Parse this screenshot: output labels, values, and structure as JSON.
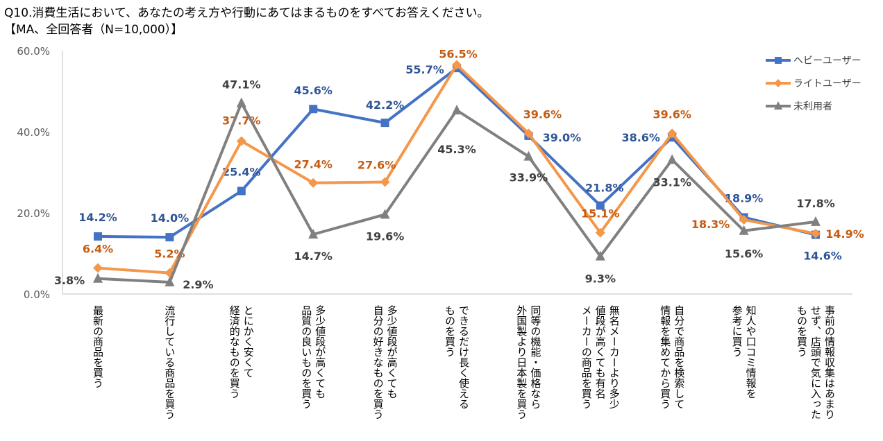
{
  "title": {
    "line1": "Q10.消費生活において、あなたの考え方や行動にあてはまるものをすべてお答えください。",
    "line2": "【MA、全回答者（N=10,000）】"
  },
  "chart_data": {
    "type": "line",
    "title": "",
    "xlabel": "",
    "ylabel": "",
    "ylim": [
      0,
      60
    ],
    "yticks": [
      "0.0%",
      "20.0%",
      "40.0%",
      "60.0%"
    ],
    "grid": false,
    "legend_position": "top-right",
    "categories": [
      [
        "最新の商品を買う"
      ],
      [
        "流行している商品を買う"
      ],
      [
        "とにかく安くて",
        "経済的なものを買う"
      ],
      [
        "多少値段が高くても",
        "品質の良いものを買う"
      ],
      [
        "多少値段が高くても",
        "自分の好きなものを買う"
      ],
      [
        "できるだけ長く使える",
        "ものを買う"
      ],
      [
        "同等の機能・価格なら",
        "外国製より日本製を買う"
      ],
      [
        "無名メーカーより多少",
        "値段が高くても有名",
        "メーカーの商品を買う"
      ],
      [
        "自分で商品を検索して",
        "情報を集めてから買う"
      ],
      [
        "知人や口コミ情報を",
        "参考に買う"
      ],
      [
        "事前の情報収集はあまり",
        "せず、店頭で気に入った",
        "ものを買う"
      ]
    ],
    "series": [
      {
        "name": "ヘビーユーザー",
        "color": "#4472C4",
        "label_color": "#2F5597",
        "marker": "square",
        "values": [
          14.2,
          14.0,
          25.4,
          45.6,
          42.2,
          55.7,
          39.0,
          21.8,
          38.6,
          18.9,
          14.6
        ]
      },
      {
        "name": "ライトユーザー",
        "color": "#F4974A",
        "label_color": "#C55A11",
        "marker": "diamond",
        "values": [
          6.4,
          5.2,
          37.7,
          27.4,
          27.6,
          56.5,
          39.6,
          15.1,
          39.6,
          18.3,
          14.9
        ]
      },
      {
        "name": "未利用者",
        "color": "#808080",
        "label_color": "#404040",
        "marker": "triangle",
        "values": [
          3.8,
          2.9,
          47.1,
          14.7,
          19.6,
          45.3,
          33.9,
          9.3,
          33.1,
          15.6,
          17.8
        ]
      }
    ]
  }
}
